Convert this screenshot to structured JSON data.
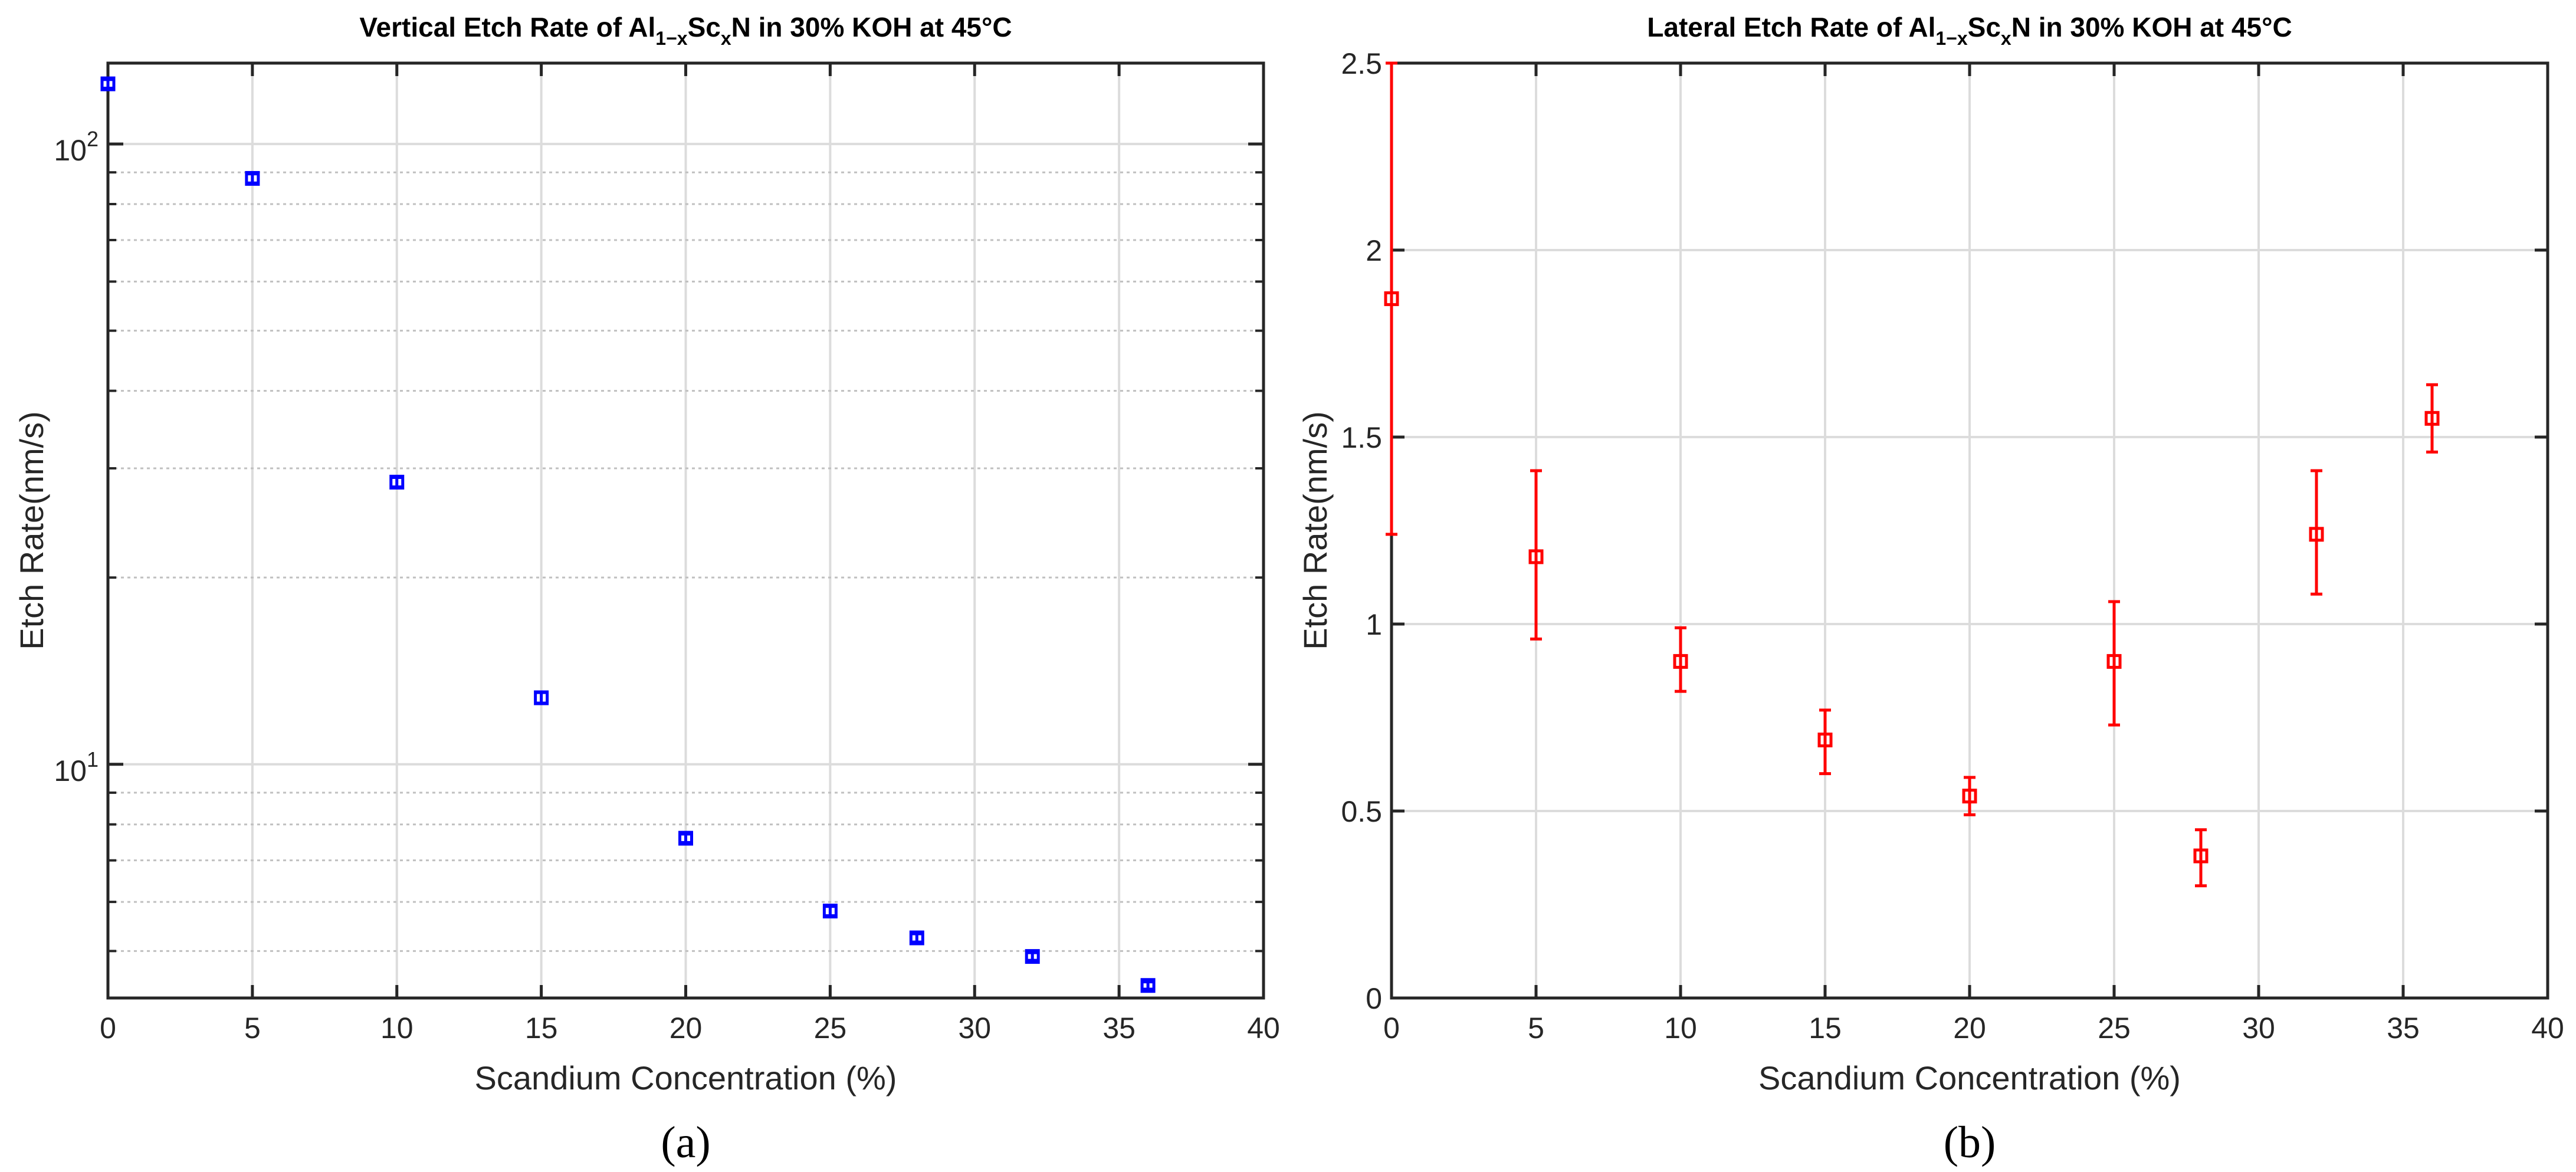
{
  "charts": [
    {
      "type": "scatter",
      "scale": "log",
      "title": {
        "prefix": "Vertical Etch Rate of Al",
        "sub1": "1−x",
        "mid": "Sc",
        "sub2": "x",
        "suffix": "N in 30% KOH at 45°C"
      },
      "xlabel": "Scandium Concentration (%)",
      "ylabel": "Etch Rate(nm/s)",
      "caption": "(a)",
      "xlim": [
        0,
        40
      ],
      "ylim": [
        4.2,
        135
      ],
      "xticks": [
        0,
        5,
        10,
        15,
        20,
        25,
        30,
        35,
        40
      ],
      "xtick_labels": [
        "0",
        "5",
        "10",
        "15",
        "20",
        "25",
        "30",
        "35",
        "40"
      ],
      "yticks_major": [
        10,
        100
      ],
      "ytick_labels": [
        {
          "base": "10",
          "exp": "1"
        },
        {
          "base": "10",
          "exp": "2"
        }
      ],
      "yticks_minor": [
        5,
        6,
        7,
        8,
        9,
        20,
        30,
        40,
        50,
        60,
        70,
        80,
        90
      ],
      "marker_color": "#0000ff",
      "points": [
        {
          "x": 0,
          "y": 125,
          "err": 2
        },
        {
          "x": 5,
          "y": 88,
          "err": 1.5
        },
        {
          "x": 10,
          "y": 28.5,
          "err": 0.5
        },
        {
          "x": 15,
          "y": 12.8,
          "err": 0.25
        },
        {
          "x": 20,
          "y": 7.6,
          "err": 0.12
        },
        {
          "x": 25,
          "y": 5.8,
          "err": 0.1
        },
        {
          "x": 28,
          "y": 5.25,
          "err": 0.08
        },
        {
          "x": 32,
          "y": 4.9,
          "err": 0.07
        },
        {
          "x": 36,
          "y": 4.4,
          "err": 0.06
        }
      ]
    },
    {
      "type": "scatter",
      "scale": "linear",
      "title": {
        "prefix": "Lateral Etch Rate of Al",
        "sub1": "1−x",
        "mid": "Sc",
        "sub2": "x",
        "suffix": "N in 30% KOH at 45°C"
      },
      "xlabel": "Scandium Concentration (%)",
      "ylabel": "Etch Rate(nm/s)",
      "caption": "(b)",
      "xlim": [
        0,
        40
      ],
      "ylim": [
        0,
        2.5
      ],
      "xticks": [
        0,
        5,
        10,
        15,
        20,
        25,
        30,
        35,
        40
      ],
      "xtick_labels": [
        "0",
        "5",
        "10",
        "15",
        "20",
        "25",
        "30",
        "35",
        "40"
      ],
      "yticks": [
        0,
        0.5,
        1,
        1.5,
        2,
        2.5
      ],
      "ytick_labels": [
        "0",
        "0.5",
        "1",
        "1.5",
        "2",
        "2.5"
      ],
      "marker_color": "#ff0000",
      "points": [
        {
          "x": 0,
          "y": 1.87,
          "lo": 1.24,
          "hi": 2.5
        },
        {
          "x": 5,
          "y": 1.18,
          "lo": 0.96,
          "hi": 1.41
        },
        {
          "x": 10,
          "y": 0.9,
          "lo": 0.82,
          "hi": 0.99
        },
        {
          "x": 15,
          "y": 0.69,
          "lo": 0.6,
          "hi": 0.77
        },
        {
          "x": 20,
          "y": 0.54,
          "lo": 0.49,
          "hi": 0.59
        },
        {
          "x": 25,
          "y": 0.9,
          "lo": 0.73,
          "hi": 1.06
        },
        {
          "x": 28,
          "y": 0.38,
          "lo": 0.3,
          "hi": 0.45
        },
        {
          "x": 32,
          "y": 1.24,
          "lo": 1.08,
          "hi": 1.41
        },
        {
          "x": 36,
          "y": 1.55,
          "lo": 1.46,
          "hi": 1.64
        }
      ]
    }
  ]
}
